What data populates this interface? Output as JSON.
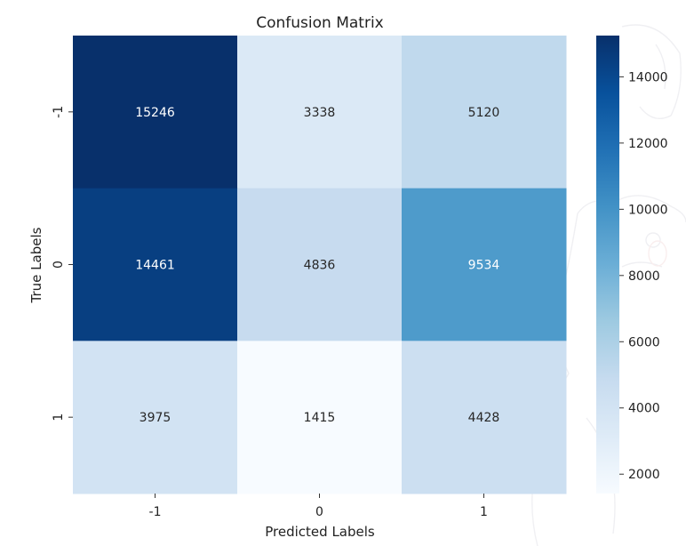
{
  "chart_data": {
    "type": "heatmap",
    "title": "Confusion Matrix",
    "xlabel": "Predicted Labels",
    "ylabel": "True Labels",
    "x_categories": [
      "-1",
      "0",
      "1"
    ],
    "y_categories": [
      "-1",
      "0",
      "1"
    ],
    "values": [
      [
        15246,
        3338,
        5120
      ],
      [
        14461,
        4836,
        9534
      ],
      [
        3975,
        1415,
        4428
      ]
    ],
    "colormap": "Blues",
    "color_range": [
      1415,
      15246
    ],
    "colorbar_ticks": [
      "2000",
      "4000",
      "6000",
      "8000",
      "10000",
      "12000",
      "14000"
    ],
    "colorbar_tick_values": [
      2000,
      4000,
      6000,
      8000,
      10000,
      12000,
      14000
    ]
  }
}
